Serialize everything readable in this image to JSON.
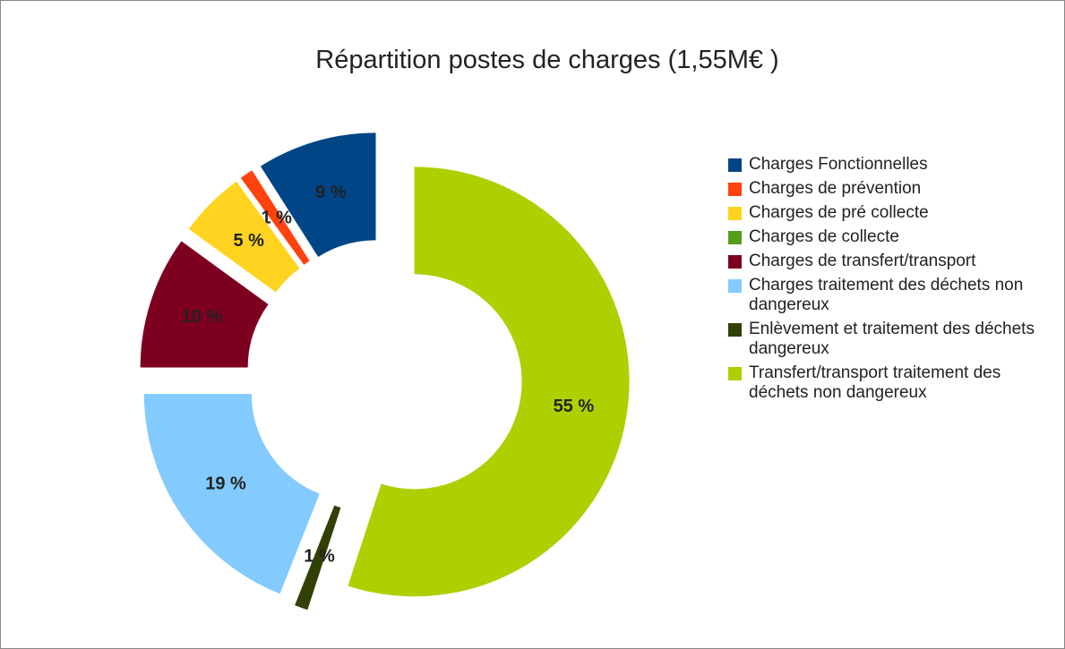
{
  "chart_data": {
    "type": "donut",
    "title": "Répartition postes de charges (1,55M€ )",
    "categories": [
      "Charges Fonctionnelles",
      "Charges de prévention",
      "Charges de pré collecte",
      "Charges de collecte",
      "Charges de transfert/transport",
      "Charges traitement des déchets non dangereux",
      "Enlèvement et traitement des déchets dangereux",
      "Transfert/transport traitement des déchets non dangereux"
    ],
    "values": [
      9,
      1,
      5,
      0,
      10,
      19,
      1,
      55
    ],
    "value_labels": [
      "9 %",
      "1 %",
      "5 %",
      null,
      "10 %",
      "19 %",
      "1 %",
      "55 %"
    ],
    "colors": [
      "#004586",
      "#ff420e",
      "#ffd320",
      "#579d1c",
      "#7e0021",
      "#83caff",
      "#314004",
      "#aecf00"
    ],
    "legend": "right"
  }
}
